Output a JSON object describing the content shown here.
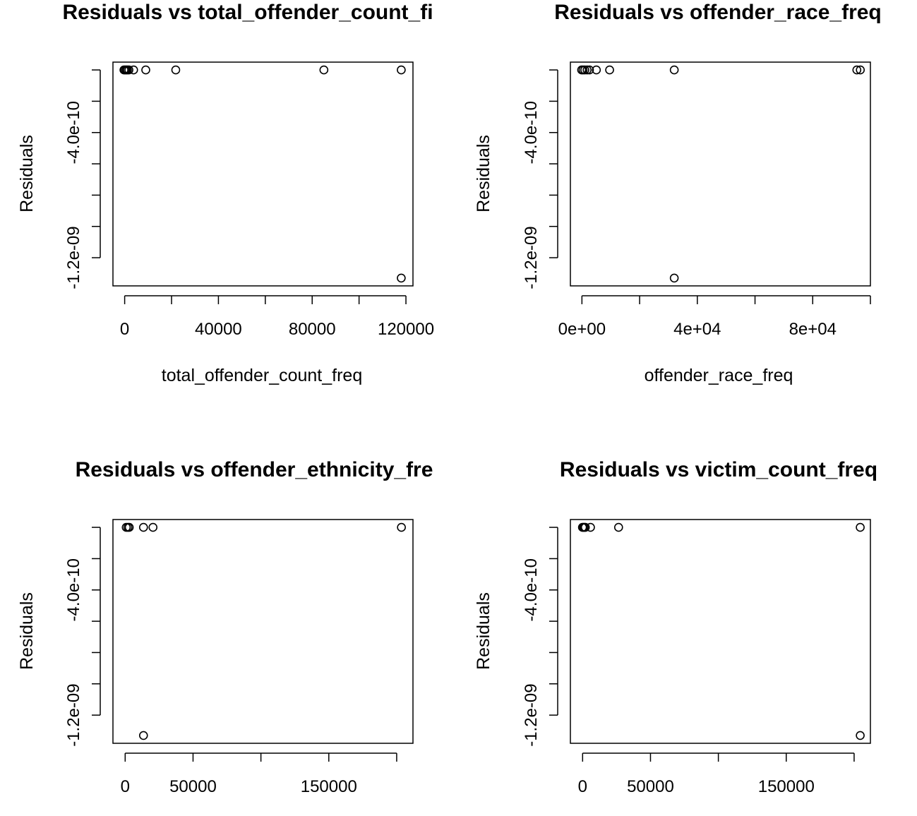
{
  "page": {
    "background": "#ffffff",
    "ink": "#000000"
  },
  "chart_data": [
    {
      "type": "scatter",
      "title": "Residuals vs total_offender_count_fi",
      "xlabel": "total_offender_count_freq",
      "ylabel": "Residuals",
      "xlim": [
        -5000,
        123000
      ],
      "ylim": [
        -1.38e-09,
        5e-11
      ],
      "x_ticks": [
        0,
        20000,
        40000,
        60000,
        80000,
        100000,
        120000
      ],
      "x_tick_labels": [
        {
          "value": 0,
          "label": "0"
        },
        {
          "value": 40000,
          "label": "40000"
        },
        {
          "value": 80000,
          "label": "80000"
        },
        {
          "value": 120000,
          "label": "120000"
        }
      ],
      "y_ticks": [
        0,
        -2e-10,
        -4e-10,
        -6e-10,
        -8e-10,
        -1e-09,
        -1.2e-09
      ],
      "y_tick_labels": [
        {
          "value": -4e-10,
          "label": "-4.0e-10"
        },
        {
          "value": -1.2e-09,
          "label": "-1.2e-09"
        }
      ],
      "grid": false,
      "points": [
        {
          "x": -300,
          "y": 0
        },
        {
          "x": 200,
          "y": 0
        },
        {
          "x": 700,
          "y": 0
        },
        {
          "x": 1200,
          "y": 0
        },
        {
          "x": 1800,
          "y": 0
        },
        {
          "x": 3800,
          "y": 0
        },
        {
          "x": 9000,
          "y": 0
        },
        {
          "x": 21800,
          "y": 0
        },
        {
          "x": 85000,
          "y": 0
        },
        {
          "x": 118000,
          "y": 0
        },
        {
          "x": 118000,
          "y": -1.33e-09
        }
      ]
    },
    {
      "type": "scatter",
      "title": "Residuals vs offender_race_freq",
      "xlabel": "offender_race_freq",
      "ylabel": "Residuals",
      "xlim": [
        -4000,
        100000
      ],
      "ylim": [
        -1.38e-09,
        5e-11
      ],
      "x_ticks": [
        0,
        20000,
        40000,
        60000,
        80000,
        100000
      ],
      "x_tick_labels": [
        {
          "value": 0,
          "label": "0e+00"
        },
        {
          "value": 40000,
          "label": "4e+04"
        },
        {
          "value": 80000,
          "label": "8e+04"
        }
      ],
      "y_ticks": [
        0,
        -2e-10,
        -4e-10,
        -6e-10,
        -8e-10,
        -1e-09,
        -1.2e-09
      ],
      "y_tick_labels": [
        {
          "value": -4e-10,
          "label": "-4.0e-10"
        },
        {
          "value": -1.2e-09,
          "label": "-1.2e-09"
        }
      ],
      "grid": false,
      "points": [
        {
          "x": -100,
          "y": 0
        },
        {
          "x": 400,
          "y": 0
        },
        {
          "x": 1000,
          "y": 0
        },
        {
          "x": 1800,
          "y": 0
        },
        {
          "x": 2600,
          "y": 0
        },
        {
          "x": 5000,
          "y": 0
        },
        {
          "x": 9600,
          "y": 0
        },
        {
          "x": 32000,
          "y": 0
        },
        {
          "x": 95300,
          "y": 0
        },
        {
          "x": 96500,
          "y": 0
        },
        {
          "x": 32000,
          "y": -1.33e-09
        }
      ]
    },
    {
      "type": "scatter",
      "title": "Residuals vs offender_ethnicity_fre",
      "xlabel": "",
      "ylabel": "Residuals",
      "xlim": [
        -9000,
        212000
      ],
      "ylim": [
        -1.38e-09,
        5e-11
      ],
      "x_ticks": [
        0,
        50000,
        100000,
        150000,
        200000
      ],
      "x_tick_labels": [
        {
          "value": 0,
          "label": "0"
        },
        {
          "value": 50000,
          "label": "50000"
        },
        {
          "value": 150000,
          "label": "150000"
        }
      ],
      "y_ticks": [
        0,
        -2e-10,
        -4e-10,
        -6e-10,
        -8e-10,
        -1e-09,
        -1.2e-09
      ],
      "y_tick_labels": [
        {
          "value": -4e-10,
          "label": "-4.0e-10"
        },
        {
          "value": -1.2e-09,
          "label": "-1.2e-09"
        }
      ],
      "grid": false,
      "points": [
        {
          "x": 800,
          "y": 0
        },
        {
          "x": 2000,
          "y": 0
        },
        {
          "x": 3000,
          "y": 0
        },
        {
          "x": 13500,
          "y": 0
        },
        {
          "x": 20500,
          "y": 0
        },
        {
          "x": 203500,
          "y": 0
        },
        {
          "x": 13500,
          "y": -1.33e-09
        }
      ]
    },
    {
      "type": "scatter",
      "title": "Residuals vs victim_count_freq",
      "xlabel": "",
      "ylabel": "Residuals",
      "xlim": [
        -9000,
        212000
      ],
      "ylim": [
        -1.38e-09,
        5e-11
      ],
      "x_ticks": [
        0,
        50000,
        100000,
        150000,
        200000
      ],
      "x_tick_labels": [
        {
          "value": 0,
          "label": "0"
        },
        {
          "value": 50000,
          "label": "50000"
        },
        {
          "value": 150000,
          "label": "150000"
        }
      ],
      "y_ticks": [
        0,
        -2e-10,
        -4e-10,
        -6e-10,
        -8e-10,
        -1e-09,
        -1.2e-09
      ],
      "y_tick_labels": [
        {
          "value": -4e-10,
          "label": "-4.0e-10"
        },
        {
          "value": -1.2e-09,
          "label": "-1.2e-09"
        }
      ],
      "grid": false,
      "points": [
        {
          "x": -100,
          "y": 0
        },
        {
          "x": 600,
          "y": 0
        },
        {
          "x": 1400,
          "y": 0
        },
        {
          "x": 2000,
          "y": 0
        },
        {
          "x": 5800,
          "y": 0
        },
        {
          "x": 26500,
          "y": 0
        },
        {
          "x": 204500,
          "y": 0
        },
        {
          "x": 204500,
          "y": -1.33e-09
        }
      ]
    }
  ]
}
